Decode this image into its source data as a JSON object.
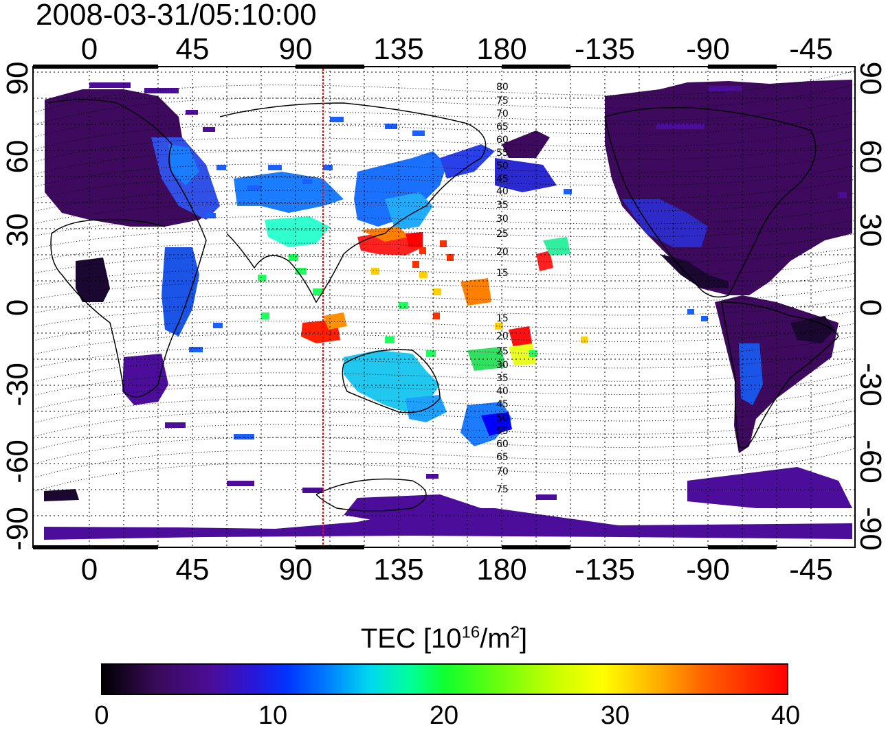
{
  "timestamp": "2008-03-31/05:10:00",
  "lon_ticks": [
    "0",
    "45",
    "90",
    "135",
    "180",
    "-135",
    "-90",
    "-45"
  ],
  "lat_ticks": [
    "90",
    "60",
    "30",
    "0",
    "-30",
    "-60",
    "-90"
  ],
  "colorbar": {
    "label_text": "TEC  [10",
    "label_exp": "16",
    "label_unit": "/m",
    "label_exp2": "2",
    "label_close": "]",
    "min": 0,
    "max": 40,
    "ticks": [
      "0",
      "10",
      "20",
      "30",
      "40"
    ],
    "colormap": [
      "#000000",
      "#4b0d9a",
      "#0000ff",
      "#00ffff",
      "#00ff00",
      "#ffff00",
      "#ff0000"
    ]
  },
  "meridian_marker_lon": 103,
  "meridian_marker_color": "#ff0000",
  "contour_labels": [
    "80",
    "75",
    "70",
    "65",
    "60",
    "55",
    "50",
    "45",
    "40",
    "35",
    "30",
    "25",
    "20",
    "15",
    "15",
    "20",
    "25",
    "30",
    "35",
    "40",
    "45",
    "50",
    "55",
    "60",
    "65",
    "70",
    "75"
  ]
}
